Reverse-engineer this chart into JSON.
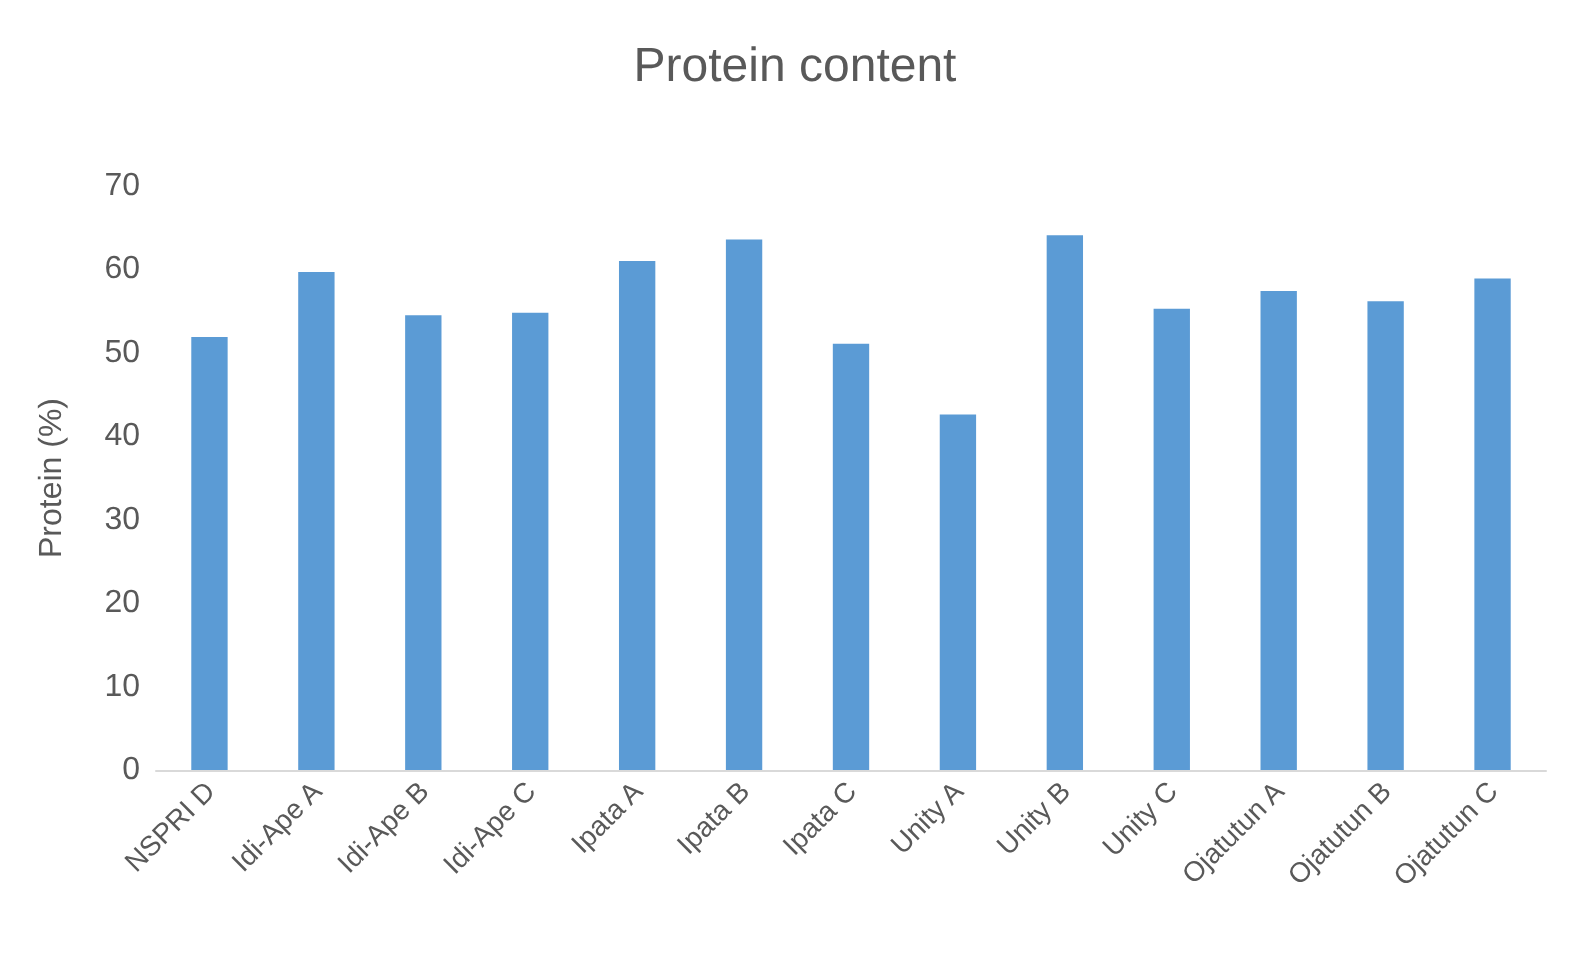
{
  "chart_data": {
    "type": "bar",
    "title": "Protein content",
    "ylabel": "Protein (%)",
    "categories": [
      "NSPRI D",
      "Idi-Ape A",
      "Idi-Ape B",
      "Idi-Ape C",
      "Ipata A",
      "Ipata B",
      "Ipata C",
      "Unity A",
      "Unity B",
      "Unity C",
      "Ojatutun A",
      "Ojatutun B",
      "Ojatutun C"
    ],
    "values": [
      51.9,
      59.7,
      54.5,
      54.8,
      61.0,
      63.6,
      51.1,
      42.6,
      64.1,
      55.3,
      57.4,
      56.2,
      58.9
    ],
    "color": "#5b9bd5",
    "ylim": [
      0,
      70
    ],
    "yticks": [
      0,
      10,
      20,
      30,
      40,
      50,
      60,
      70
    ],
    "grid": false
  }
}
